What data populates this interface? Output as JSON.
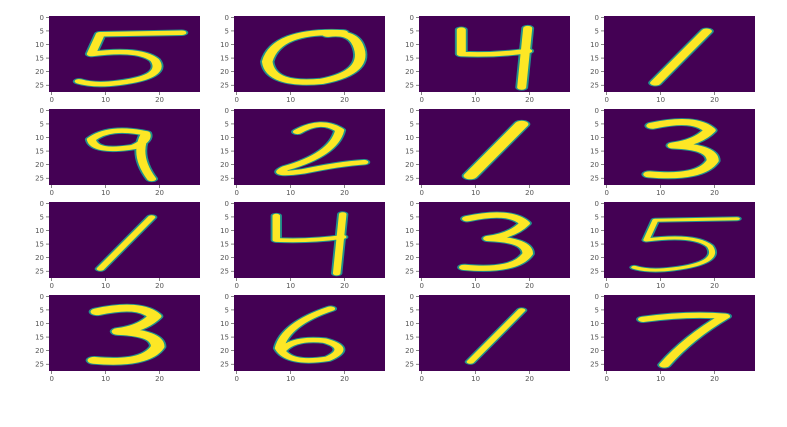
{
  "colors": {
    "background": "#440154",
    "foreground": "#fde725",
    "edge": "#21918c"
  },
  "chart_data": [
    {
      "type": "heatmap",
      "digit": "5",
      "xticks": [
        "0",
        "10",
        "20"
      ],
      "yticks": [
        "0",
        "5",
        "10",
        "15",
        "20",
        "25"
      ]
    },
    {
      "type": "heatmap",
      "digit": "0",
      "xticks": [
        "0",
        "10",
        "20"
      ],
      "yticks": [
        "0",
        "5",
        "10",
        "15",
        "20",
        "25"
      ]
    },
    {
      "type": "heatmap",
      "digit": "4",
      "xticks": [
        "0",
        "10",
        "20"
      ],
      "yticks": [
        "0",
        "5",
        "10",
        "15",
        "20",
        "25"
      ]
    },
    {
      "type": "heatmap",
      "digit": "1",
      "xticks": [
        "0",
        "10",
        "20"
      ],
      "yticks": [
        "0",
        "5",
        "10",
        "15",
        "20",
        "25"
      ]
    },
    {
      "type": "heatmap",
      "digit": "9",
      "xticks": [
        "0",
        "10",
        "20"
      ],
      "yticks": [
        "0",
        "5",
        "10",
        "15",
        "20",
        "25"
      ]
    },
    {
      "type": "heatmap",
      "digit": "2",
      "xticks": [
        "0",
        "10",
        "20"
      ],
      "yticks": [
        "0",
        "5",
        "10",
        "15",
        "20",
        "25"
      ]
    },
    {
      "type": "heatmap",
      "digit": "1",
      "xticks": [
        "0",
        "10",
        "20"
      ],
      "yticks": [
        "0",
        "5",
        "10",
        "15",
        "20",
        "25"
      ]
    },
    {
      "type": "heatmap",
      "digit": "3",
      "xticks": [
        "0",
        "10",
        "20"
      ],
      "yticks": [
        "0",
        "5",
        "10",
        "15",
        "20",
        "25"
      ]
    },
    {
      "type": "heatmap",
      "digit": "1",
      "xticks": [
        "0",
        "10",
        "20"
      ],
      "yticks": [
        "0",
        "5",
        "10",
        "15",
        "20",
        "25"
      ]
    },
    {
      "type": "heatmap",
      "digit": "4",
      "xticks": [
        "0",
        "10",
        "20"
      ],
      "yticks": [
        "0",
        "5",
        "10",
        "15",
        "20",
        "25"
      ]
    },
    {
      "type": "heatmap",
      "digit": "3",
      "xticks": [
        "0",
        "10",
        "20"
      ],
      "yticks": [
        "0",
        "5",
        "10",
        "15",
        "20",
        "25"
      ]
    },
    {
      "type": "heatmap",
      "digit": "5",
      "xticks": [
        "0",
        "10",
        "20"
      ],
      "yticks": [
        "0",
        "5",
        "10",
        "15",
        "20",
        "25"
      ]
    },
    {
      "type": "heatmap",
      "digit": "3",
      "xticks": [
        "0",
        "10",
        "20"
      ],
      "yticks": [
        "0",
        "5",
        "10",
        "15",
        "20",
        "25"
      ]
    },
    {
      "type": "heatmap",
      "digit": "6",
      "xticks": [
        "0",
        "10",
        "20"
      ],
      "yticks": [
        "0",
        "5",
        "10",
        "15",
        "20",
        "25"
      ]
    },
    {
      "type": "heatmap",
      "digit": "1",
      "xticks": [
        "0",
        "10",
        "20"
      ],
      "yticks": [
        "0",
        "5",
        "10",
        "15",
        "20",
        "25"
      ]
    },
    {
      "type": "heatmap",
      "digit": "7",
      "xticks": [
        "0",
        "10",
        "20"
      ],
      "yticks": [
        "0",
        "5",
        "10",
        "15",
        "20",
        "25"
      ]
    }
  ]
}
